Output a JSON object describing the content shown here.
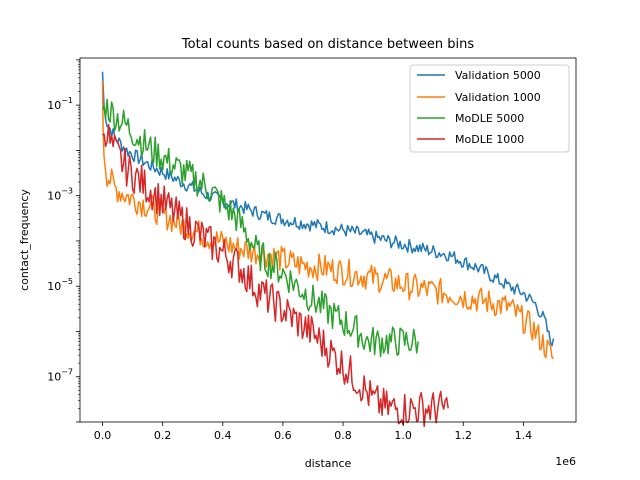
{
  "chart_data": {
    "type": "line",
    "title": "Total counts based on distance between bins",
    "xlabel": "distance",
    "ylabel": "contact_frequency",
    "x_offset_label": "1e6",
    "x_scale": "linear",
    "y_scale": "log",
    "xlim": [
      -75000,
      1575000
    ],
    "ylim": [
      1e-08,
      1.1
    ],
    "x_ticks": [
      {
        "value": 0,
        "label": "0.0"
      },
      {
        "value": 200000,
        "label": "0.2"
      },
      {
        "value": 400000,
        "label": "0.4"
      },
      {
        "value": 600000,
        "label": "0.6"
      },
      {
        "value": 800000,
        "label": "0.8"
      },
      {
        "value": 1000000,
        "label": "1.0"
      },
      {
        "value": 1200000,
        "label": "1.2"
      },
      {
        "value": 1400000,
        "label": "1.4"
      }
    ],
    "y_ticks": [
      {
        "value": 1e-07,
        "base": "10",
        "exp": "−7"
      },
      {
        "value": 1e-05,
        "base": "10",
        "exp": "−5"
      },
      {
        "value": 0.001,
        "base": "10",
        "exp": "−3"
      },
      {
        "value": 0.1,
        "base": "10",
        "exp": "−1"
      }
    ],
    "grid": false,
    "legend_position": "top-right",
    "series": [
      {
        "name": "Validation 5000",
        "color": "#1f77b4",
        "noise": 0.15,
        "points": [
          [
            0,
            0.55
          ],
          [
            5000,
            0.1
          ],
          [
            15000,
            0.04
          ],
          [
            40000,
            0.02
          ],
          [
            80000,
            0.01
          ],
          [
            150000,
            0.005
          ],
          [
            250000,
            0.0022
          ],
          [
            350000,
            0.001
          ],
          [
            450000,
            0.0006
          ],
          [
            550000,
            0.00035
          ],
          [
            650000,
            0.00026
          ],
          [
            750000,
            0.0002
          ],
          [
            850000,
            0.00015
          ],
          [
            950000,
            0.0001
          ],
          [
            1050000,
            7e-05
          ],
          [
            1150000,
            5e-05
          ],
          [
            1250000,
            2.5e-05
          ],
          [
            1350000,
            1e-05
          ],
          [
            1400000,
            7e-06
          ],
          [
            1440000,
            4e-06
          ],
          [
            1470000,
            1.8e-06
          ],
          [
            1490000,
            6e-07
          ],
          [
            1500000,
            7e-07
          ]
        ]
      },
      {
        "name": "Validation 1000",
        "color": "#ff7f0e",
        "noise": 0.3,
        "points": [
          [
            0,
            0.3
          ],
          [
            2000,
            0.03
          ],
          [
            5000,
            0.008
          ],
          [
            15000,
            0.003
          ],
          [
            40000,
            0.0015
          ],
          [
            80000,
            0.001
          ],
          [
            150000,
            0.0006
          ],
          [
            250000,
            0.00025
          ],
          [
            350000,
            0.00012
          ],
          [
            450000,
            7e-05
          ],
          [
            550000,
            5e-05
          ],
          [
            650000,
            3e-05
          ],
          [
            750000,
            2.5e-05
          ],
          [
            850000,
            1.8e-05
          ],
          [
            950000,
            1.3e-05
          ],
          [
            1050000,
            9e-06
          ],
          [
            1150000,
            7e-06
          ],
          [
            1250000,
            5e-06
          ],
          [
            1350000,
            3.5e-06
          ],
          [
            1430000,
            1.2e-06
          ],
          [
            1470000,
            5e-07
          ],
          [
            1500000,
            2.5e-07
          ]
        ]
      },
      {
        "name": "MoDLE 5000",
        "color": "#2ca02c",
        "noise": 0.35,
        "points": [
          [
            0,
            0.08
          ],
          [
            10000,
            0.1
          ],
          [
            30000,
            0.07
          ],
          [
            80000,
            0.035
          ],
          [
            150000,
            0.012
          ],
          [
            250000,
            0.004
          ],
          [
            350000,
            0.0015
          ],
          [
            450000,
            0.0003
          ],
          [
            520000,
            5e-05
          ],
          [
            600000,
            2e-05
          ],
          [
            700000,
            5e-06
          ],
          [
            780000,
            2e-06
          ],
          [
            850000,
            1e-06
          ],
          [
            880000,
            6e-07
          ],
          [
            900000,
            6e-07
          ],
          [
            1050000,
            6e-07
          ]
        ]
      },
      {
        "name": "MoDLE 1000",
        "color": "#d62728",
        "noise": 0.4,
        "points": [
          [
            0,
            0.02
          ],
          [
            10000,
            0.03
          ],
          [
            30000,
            0.012
          ],
          [
            80000,
            0.004
          ],
          [
            150000,
            0.0015
          ],
          [
            250000,
            0.00035
          ],
          [
            350000,
            0.0001
          ],
          [
            450000,
            3e-05
          ],
          [
            520000,
            8e-06
          ],
          [
            600000,
            3e-06
          ],
          [
            700000,
            9e-07
          ],
          [
            780000,
            2.5e-07
          ],
          [
            850000,
            8e-08
          ],
          [
            900000,
            3e-08
          ],
          [
            950000,
            2e-08
          ],
          [
            1150000,
            2e-08
          ]
        ]
      }
    ]
  }
}
